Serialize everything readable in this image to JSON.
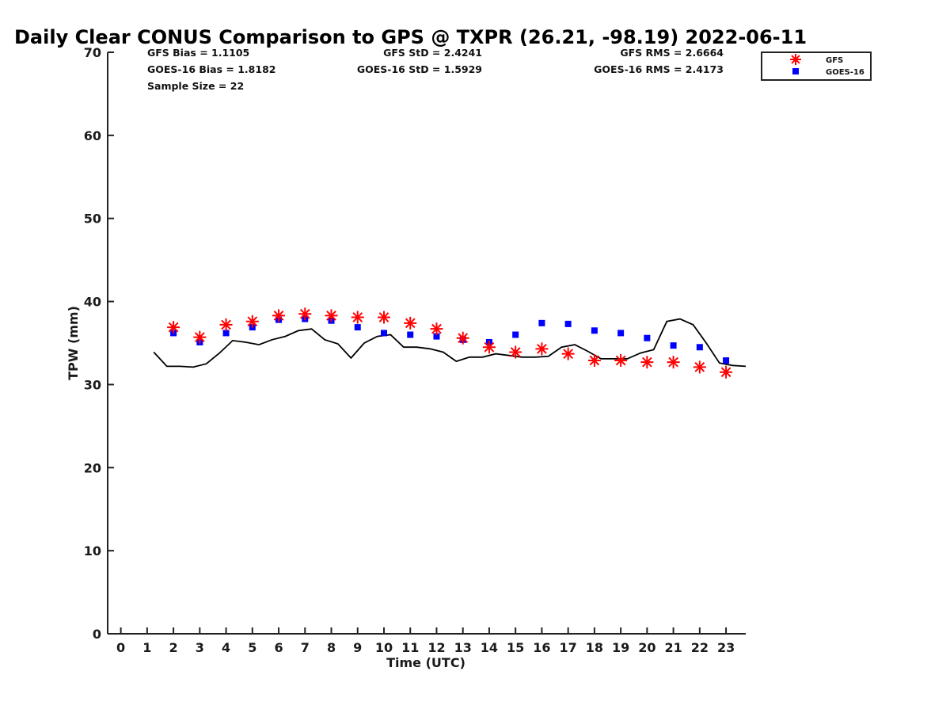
{
  "chart_data": {
    "type": "scatter",
    "title": "Daily Clear CONUS Comparison to GPS @ TXPR (26.21, -98.19) 2022-06-11",
    "xlabel": "Time (UTC)",
    "ylabel": "TPW (mm)",
    "xlim": [
      -0.5,
      23.75
    ],
    "ylim": [
      0,
      70
    ],
    "xticks": [
      0,
      1,
      2,
      3,
      4,
      5,
      6,
      7,
      8,
      9,
      10,
      11,
      12,
      13,
      14,
      15,
      16,
      17,
      18,
      19,
      20,
      21,
      22,
      23
    ],
    "yticks": [
      0,
      10,
      20,
      30,
      40,
      50,
      60,
      70
    ],
    "grid": false,
    "legend_position": "top-right",
    "series": [
      {
        "name": "GFS",
        "marker": "asterisk",
        "color": "#ff0000",
        "x": [
          2,
          3,
          4,
          5,
          6,
          7,
          8,
          9,
          10,
          11,
          12,
          13,
          14,
          15,
          16,
          17,
          18,
          19,
          20,
          21,
          22,
          23
        ],
        "y": [
          36.9,
          35.7,
          37.2,
          37.6,
          38.3,
          38.5,
          38.3,
          38.1,
          38.1,
          37.4,
          36.7,
          35.6,
          34.5,
          33.9,
          34.3,
          33.7,
          32.9,
          32.9,
          32.7,
          32.7,
          32.1,
          31.5
        ]
      },
      {
        "name": "GOES-16",
        "marker": "square",
        "color": "#0000ff",
        "x": [
          2,
          3,
          4,
          5,
          6,
          7,
          8,
          9,
          10,
          11,
          12,
          13,
          14,
          15,
          16,
          17,
          18,
          19,
          20,
          21,
          22,
          23
        ],
        "y": [
          36.2,
          35.1,
          36.2,
          36.9,
          37.8,
          37.9,
          37.7,
          36.9,
          36.2,
          36.0,
          35.8,
          35.4,
          35.1,
          36.0,
          37.4,
          37.3,
          36.5,
          36.2,
          35.6,
          34.7,
          34.5,
          32.9
        ]
      },
      {
        "marker": "line",
        "color": "#000000",
        "x": [
          1.25,
          1.75,
          2.25,
          2.75,
          3.25,
          3.75,
          4.25,
          4.75,
          5.25,
          5.75,
          6.25,
          6.75,
          7.25,
          7.75,
          8.25,
          8.75,
          9.25,
          9.75,
          10.25,
          10.75,
          11.25,
          11.75,
          12.25,
          12.75,
          13.25,
          13.75,
          14.25,
          14.75,
          15.25,
          15.75,
          16.25,
          16.75,
          17.25,
          17.75,
          18.25,
          18.75,
          19.25,
          19.75,
          20.25,
          20.75,
          21.25,
          21.75,
          22.25,
          22.75,
          23.25,
          23.75
        ],
        "y": [
          33.9,
          32.2,
          32.2,
          32.1,
          32.5,
          33.8,
          35.3,
          35.1,
          34.8,
          35.4,
          35.8,
          36.5,
          36.7,
          35.4,
          34.9,
          33.2,
          35.0,
          35.8,
          36.0,
          34.5,
          34.5,
          34.3,
          33.9,
          32.8,
          33.3,
          33.3,
          33.7,
          33.5,
          33.3,
          33.3,
          33.4,
          34.5,
          34.8,
          34.0,
          33.1,
          33.1,
          33.1,
          33.8,
          34.2,
          37.6,
          37.9,
          37.2,
          35.0,
          32.6,
          32.3,
          32.2
        ]
      }
    ],
    "annotations": {
      "gfs_bias": "GFS Bias = 1.1105",
      "goes_bias": "GOES-16 Bias = 1.8182",
      "sample_size": "Sample Size = 22",
      "gfs_std": "GFS StD = 2.4241",
      "goes_std": "GOES-16 StD = 1.5929",
      "gfs_rms": "GFS RMS = 2.6664",
      "goes_rms": "GOES-16 RMS = 2.4173"
    }
  }
}
